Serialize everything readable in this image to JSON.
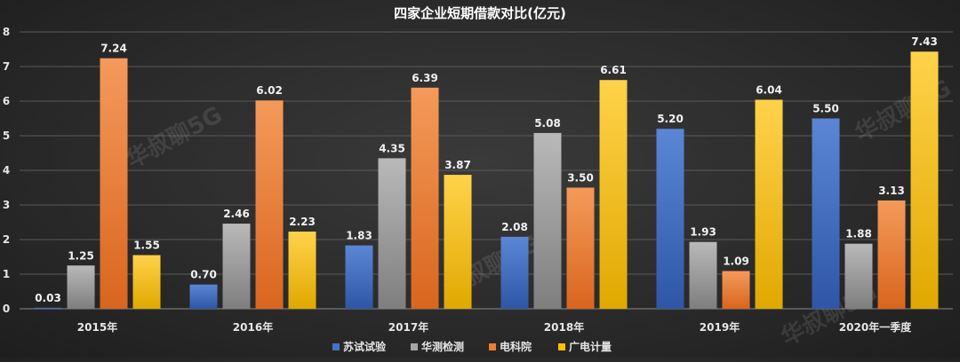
{
  "chart_data": {
    "type": "bar",
    "title": "四家企业短期借款对比(亿元)",
    "categories": [
      "2015年",
      "2016年",
      "2017年",
      "2018年",
      "2019年",
      "2020年一季度"
    ],
    "series": [
      {
        "name": "苏试试验",
        "values": [
          0.03,
          0.7,
          1.83,
          2.08,
          5.2,
          5.5
        ],
        "labels": [
          "0.03",
          "0.70",
          "1.83",
          "2.08",
          "5.20",
          "5.50"
        ],
        "color": "#4472c4"
      },
      {
        "name": "华测检测",
        "values": [
          1.25,
          2.46,
          4.35,
          5.08,
          1.93,
          1.88
        ],
        "labels": [
          "1.25",
          "2.46",
          "4.35",
          "5.08",
          "1.93",
          "1.88"
        ],
        "color": "#a5a5a5"
      },
      {
        "name": "电科院",
        "values": [
          7.24,
          6.02,
          6.39,
          3.5,
          1.09,
          3.13
        ],
        "labels": [
          "7.24",
          "6.02",
          "6.39",
          "3.50",
          "1.09",
          "3.13"
        ],
        "color": "#ed7d31"
      },
      {
        "name": "广电计量",
        "values": [
          1.55,
          2.23,
          3.87,
          6.61,
          6.04,
          7.43
        ],
        "labels": [
          "1.55",
          "2.23",
          "3.87",
          "6.61",
          "6.04",
          "7.43"
        ],
        "color": "#ffc000"
      }
    ],
    "ylim": [
      0,
      8
    ],
    "yticks": [
      "0",
      "1",
      "2",
      "3",
      "4",
      "5",
      "6",
      "7",
      "8"
    ],
    "grid": true,
    "legend": "bottom",
    "xlabel": "",
    "ylabel": ""
  },
  "watermark": "华叔聊5G"
}
